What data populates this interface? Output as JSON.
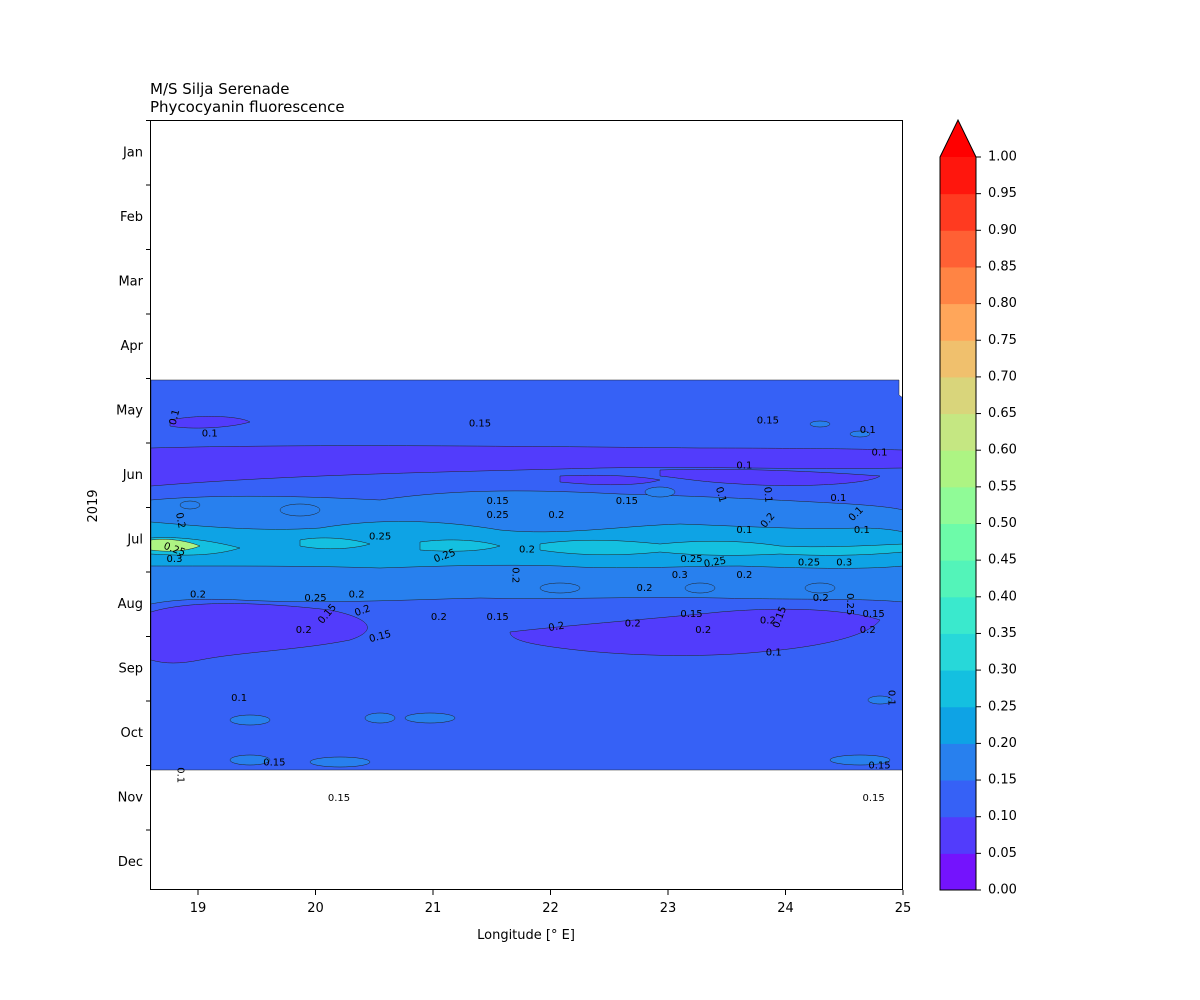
{
  "title_line1": "M/S Silja Serenade",
  "title_line2": "Phycocyanin fluorescence",
  "colors": {
    "background": "#ffffff",
    "axis": "#000000",
    "contour_line": "#1a1a1a"
  },
  "chart_data": {
    "type": "heatmap",
    "subtype": "filled-contour",
    "title": "M/S Silja Serenade",
    "subtitle": "Phycocyanin fluorescence",
    "xlabel": "Longitude [° E]",
    "ylabel": "2019",
    "xlim": [
      18.6,
      25.0
    ],
    "x_ticks": [
      19,
      20,
      21,
      22,
      23,
      24,
      25
    ],
    "y_axis_inverted": true,
    "y_month_labels": [
      "Jan",
      "Feb",
      "Mar",
      "Apr",
      "May",
      "Jun",
      "Jul",
      "Aug",
      "Sep",
      "Oct",
      "Nov",
      "Dec"
    ],
    "data_time_range": [
      "late Apr",
      "late Oct"
    ],
    "colorbar": {
      "levels": [
        0.0,
        0.05,
        0.1,
        0.15,
        0.2,
        0.25,
        0.3,
        0.35,
        0.4,
        0.45,
        0.5,
        0.55,
        0.6,
        0.65,
        0.7,
        0.75,
        0.8,
        0.85,
        0.9,
        0.95,
        1.0
      ],
      "tick_labels": [
        "0.00",
        "0.05",
        "0.10",
        "0.15",
        "0.20",
        "0.25",
        "0.30",
        "0.35",
        "0.40",
        "0.45",
        "0.50",
        "0.55",
        "0.60",
        "0.65",
        "0.70",
        "0.75",
        "0.80",
        "0.85",
        "0.90",
        "0.95",
        "1.00"
      ],
      "colors": [
        "#7413fd",
        "#523cfc",
        "#3661f6",
        "#2880ee",
        "#0ea3e5",
        "#14c0e0",
        "#27d8d9",
        "#3ae9cd",
        "#53f4b9",
        "#6dfba9",
        "#90fb97",
        "#adf483",
        "#c5e782",
        "#d9d57b",
        "#f0c06d",
        "#ffa65a",
        "#ff8444",
        "#ff6034",
        "#ff3a20",
        "#ff160d"
      ],
      "extend": "max",
      "extend_color": "#ff0000"
    },
    "fields": [
      {
        "value": 0.125,
        "desc": "background level, late Apr to late Oct"
      },
      {
        "value": 0.075,
        "desc": "low band mid-late May"
      },
      {
        "value": 0.075,
        "desc": "low patches mid Aug to early Sep"
      },
      {
        "value": 0.175,
        "desc": "elevated band mid Jun to mid Aug"
      },
      {
        "value": 0.225,
        "desc": "bloom band early Jul to late Jul"
      },
      {
        "value": 0.275,
        "desc": "bloom core mid Jul"
      },
      {
        "value": 0.55,
        "desc": "hotspot near 18.8 E mid Jul"
      }
    ],
    "contour_labels": [
      {
        "text": "0.1",
        "lon": 18.8,
        "month": 4.6,
        "rot": -75
      },
      {
        "text": "0.1",
        "lon": 19.1,
        "month": 4.85,
        "rot": 0
      },
      {
        "text": "0.15",
        "lon": 21.4,
        "month": 4.7,
        "rot": 0
      },
      {
        "text": "0.15",
        "lon": 23.85,
        "month": 4.65,
        "rot": 0
      },
      {
        "text": "0.1",
        "lon": 24.7,
        "month": 4.8,
        "rot": 0
      },
      {
        "text": "0.1",
        "lon": 24.8,
        "month": 5.15,
        "rot": 0
      },
      {
        "text": "0.1",
        "lon": 23.65,
        "month": 5.35,
        "rot": 0
      },
      {
        "text": "0.15",
        "lon": 21.55,
        "month": 5.9,
        "rot": 0
      },
      {
        "text": "0.25",
        "lon": 21.55,
        "month": 6.12,
        "rot": 0
      },
      {
        "text": "0.2",
        "lon": 22.05,
        "month": 6.12,
        "rot": 0
      },
      {
        "text": "0.15",
        "lon": 22.65,
        "month": 5.9,
        "rot": 0
      },
      {
        "text": "0.1",
        "lon": 23.45,
        "month": 5.8,
        "rot": 75
      },
      {
        "text": "0.1",
        "lon": 23.85,
        "month": 5.8,
        "rot": 85
      },
      {
        "text": "0.1",
        "lon": 24.45,
        "month": 5.85,
        "rot": 0
      },
      {
        "text": "0.1",
        "lon": 24.6,
        "month": 6.1,
        "rot": -45
      },
      {
        "text": "0.2",
        "lon": 23.85,
        "month": 6.2,
        "rot": -50
      },
      {
        "text": "0.1",
        "lon": 23.65,
        "month": 6.35,
        "rot": 0
      },
      {
        "text": "0.1",
        "lon": 24.65,
        "month": 6.35,
        "rot": 0
      },
      {
        "text": "0.2",
        "lon": 18.85,
        "month": 6.2,
        "rot": 80
      },
      {
        "text": "0.25",
        "lon": 18.8,
        "month": 6.65,
        "rot": 20
      },
      {
        "text": "0.3",
        "lon": 18.8,
        "month": 6.8,
        "rot": 0
      },
      {
        "text": "0.25",
        "lon": 20.55,
        "month": 6.45,
        "rot": 0
      },
      {
        "text": "0.2",
        "lon": 21.8,
        "month": 6.65,
        "rot": 0
      },
      {
        "text": "0.25",
        "lon": 21.1,
        "month": 6.75,
        "rot": -20
      },
      {
        "text": "0.2",
        "lon": 21.7,
        "month": 7.05,
        "rot": 90
      },
      {
        "text": "0.25",
        "lon": 23.2,
        "month": 6.8,
        "rot": 0
      },
      {
        "text": "0.25",
        "lon": 23.4,
        "month": 6.85,
        "rot": -10
      },
      {
        "text": "0.3",
        "lon": 23.1,
        "month": 7.05,
        "rot": 0
      },
      {
        "text": "0.2",
        "lon": 23.65,
        "month": 7.05,
        "rot": 0
      },
      {
        "text": "0.25",
        "lon": 24.2,
        "month": 6.85,
        "rot": 0
      },
      {
        "text": "0.3",
        "lon": 24.5,
        "month": 6.85,
        "rot": 0
      },
      {
        "text": "0.2",
        "lon": 22.8,
        "month": 7.25,
        "rot": 0
      },
      {
        "text": "0.2",
        "lon": 19.0,
        "month": 7.35,
        "rot": 0
      },
      {
        "text": "0.25",
        "lon": 20.0,
        "month": 7.4,
        "rot": 0
      },
      {
        "text": "0.2",
        "lon": 20.35,
        "month": 7.35,
        "rot": 0
      },
      {
        "text": "0.2",
        "lon": 24.3,
        "month": 7.4,
        "rot": 0
      },
      {
        "text": "0.25",
        "lon": 24.55,
        "month": 7.5,
        "rot": 90
      },
      {
        "text": "0.15",
        "lon": 20.1,
        "month": 7.65,
        "rot": -50
      },
      {
        "text": "0.2",
        "lon": 20.4,
        "month": 7.6,
        "rot": -20
      },
      {
        "text": "0.2",
        "lon": 21.05,
        "month": 7.7,
        "rot": 0
      },
      {
        "text": "0.15",
        "lon": 21.55,
        "month": 7.7,
        "rot": 0
      },
      {
        "text": "0.15",
        "lon": 23.2,
        "month": 7.65,
        "rot": 0
      },
      {
        "text": "0.15",
        "lon": 24.75,
        "month": 7.65,
        "rot": 0
      },
      {
        "text": "0.2",
        "lon": 19.9,
        "month": 7.9,
        "rot": 0
      },
      {
        "text": "0.2",
        "lon": 22.05,
        "month": 7.85,
        "rot": -10
      },
      {
        "text": "0.2",
        "lon": 22.7,
        "month": 7.8,
        "rot": 0
      },
      {
        "text": "0.2",
        "lon": 23.3,
        "month": 7.9,
        "rot": 0
      },
      {
        "text": "0.2",
        "lon": 23.85,
        "month": 7.75,
        "rot": 0
      },
      {
        "text": "0.15",
        "lon": 23.95,
        "month": 7.7,
        "rot": -70
      },
      {
        "text": "0.2",
        "lon": 24.7,
        "month": 7.9,
        "rot": 0
      },
      {
        "text": "0.15",
        "lon": 20.55,
        "month": 8.0,
        "rot": -15
      },
      {
        "text": "0.1",
        "lon": 23.9,
        "month": 8.25,
        "rot": 0
      },
      {
        "text": "0.1",
        "lon": 19.35,
        "month": 8.95,
        "rot": 0
      },
      {
        "text": "0.1",
        "lon": 24.9,
        "month": 8.95,
        "rot": 90
      },
      {
        "text": "0.15",
        "lon": 19.65,
        "month": 9.95,
        "rot": 0
      },
      {
        "text": "0.1",
        "lon": 18.85,
        "month": 10.15,
        "rot": 90
      },
      {
        "text": "0.15",
        "lon": 24.8,
        "month": 10.0,
        "rot": 0
      },
      {
        "text": "0.15",
        "lon": 20.2,
        "month": 10.5,
        "rot": 0
      },
      {
        "text": "0.15",
        "lon": 24.75,
        "month": 10.5,
        "rot": 0
      }
    ]
  }
}
